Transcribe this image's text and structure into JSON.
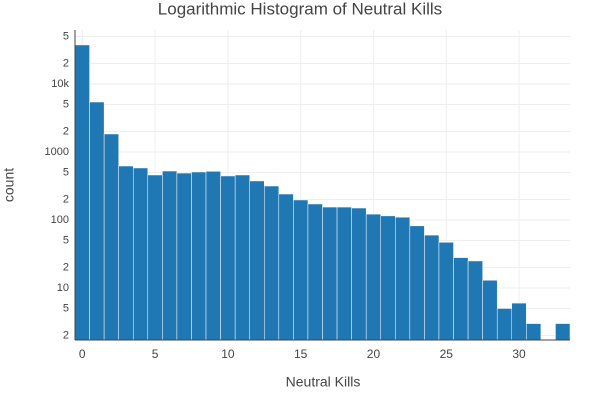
{
  "chart_data": {
    "type": "histogram",
    "title": "Logarithmic Histogram of Neutral Kills",
    "x_label": "Neutral Kills",
    "y_label": "count",
    "color": "#1f77b4",
    "log_y": true,
    "grid": true,
    "bins": [
      -0.5,
      0.5,
      1.5,
      2.5,
      3.5,
      4.5,
      5.5,
      6.5,
      7.5,
      8.5,
      9.5,
      10.5,
      11.5,
      12.5,
      13.5,
      14.5,
      15.5,
      16.5,
      17.5,
      18.5,
      19.5,
      20.5,
      21.5,
      22.5,
      23.5,
      24.5,
      25.5,
      26.5,
      27.5,
      28.5,
      29.5,
      30.5,
      31.5,
      32.5,
      33.5
    ],
    "values": [
      37500,
      5430,
      1840,
      622,
      582,
      459,
      525,
      490,
      508,
      520,
      444,
      459,
      375,
      316,
      241,
      197,
      172,
      155,
      155,
      150,
      122,
      115,
      110,
      82,
      60,
      47,
      28,
      25,
      13,
      5,
      6,
      3,
      0,
      3
    ],
    "xlim": [
      -0.5,
      33.5
    ],
    "xticks": [
      0,
      5,
      10,
      15,
      20,
      25,
      30
    ],
    "ylim": [
      1.72,
      62200
    ],
    "yticks": [
      2,
      5,
      10,
      {
        "value": 20,
        "label": "2"
      },
      {
        "value": 50,
        "label": "5"
      },
      100,
      {
        "value": 200,
        "label": "2"
      },
      {
        "value": 500,
        "label": "5"
      },
      1000,
      {
        "value": 2000,
        "label": "2"
      },
      {
        "value": 5000,
        "label": "5"
      },
      {
        "value": 10000,
        "label": "10k"
      },
      {
        "value": 20000,
        "label": "2"
      },
      {
        "value": 50000,
        "label": "5"
      }
    ]
  }
}
